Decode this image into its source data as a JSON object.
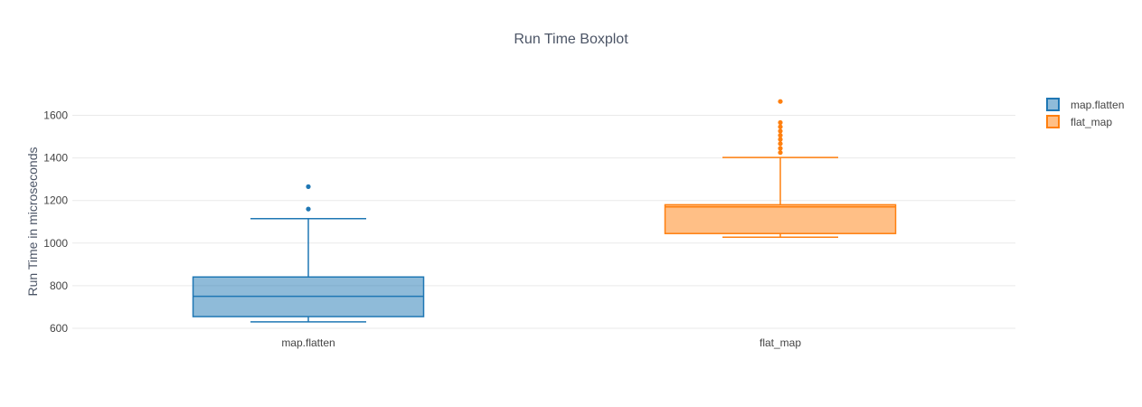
{
  "chart_data": {
    "type": "box",
    "title": "Run Time Boxplot",
    "xlabel": "",
    "ylabel": "Run Time in microseconds",
    "categories": [
      "map.flatten",
      "flat_map"
    ],
    "yticks": [
      600,
      800,
      1000,
      1200,
      1400,
      1600
    ],
    "ylim": [
      560,
      1700
    ],
    "grid": true,
    "legend_position": "top-right",
    "style": {
      "grid_color": "#e9e9e9",
      "text_color": "#444444",
      "background": "#ffffff"
    },
    "series": [
      {
        "name": "map.flatten",
        "color": "#1f77b4",
        "fill_opacity": 0.5,
        "whisker_low": 630,
        "q1": 655,
        "median": 750,
        "q3": 841,
        "whisker_high": 1115,
        "outliers": [
          1160,
          1265
        ]
      },
      {
        "name": "flat_map",
        "color": "#ff7f0e",
        "fill_opacity": 0.5,
        "whisker_low": 1028,
        "q1": 1045,
        "median": 1170,
        "q3": 1180,
        "whisker_high": 1402,
        "outliers": [
          1425,
          1445,
          1467,
          1487,
          1506,
          1526,
          1546,
          1566,
          1665
        ]
      }
    ]
  }
}
